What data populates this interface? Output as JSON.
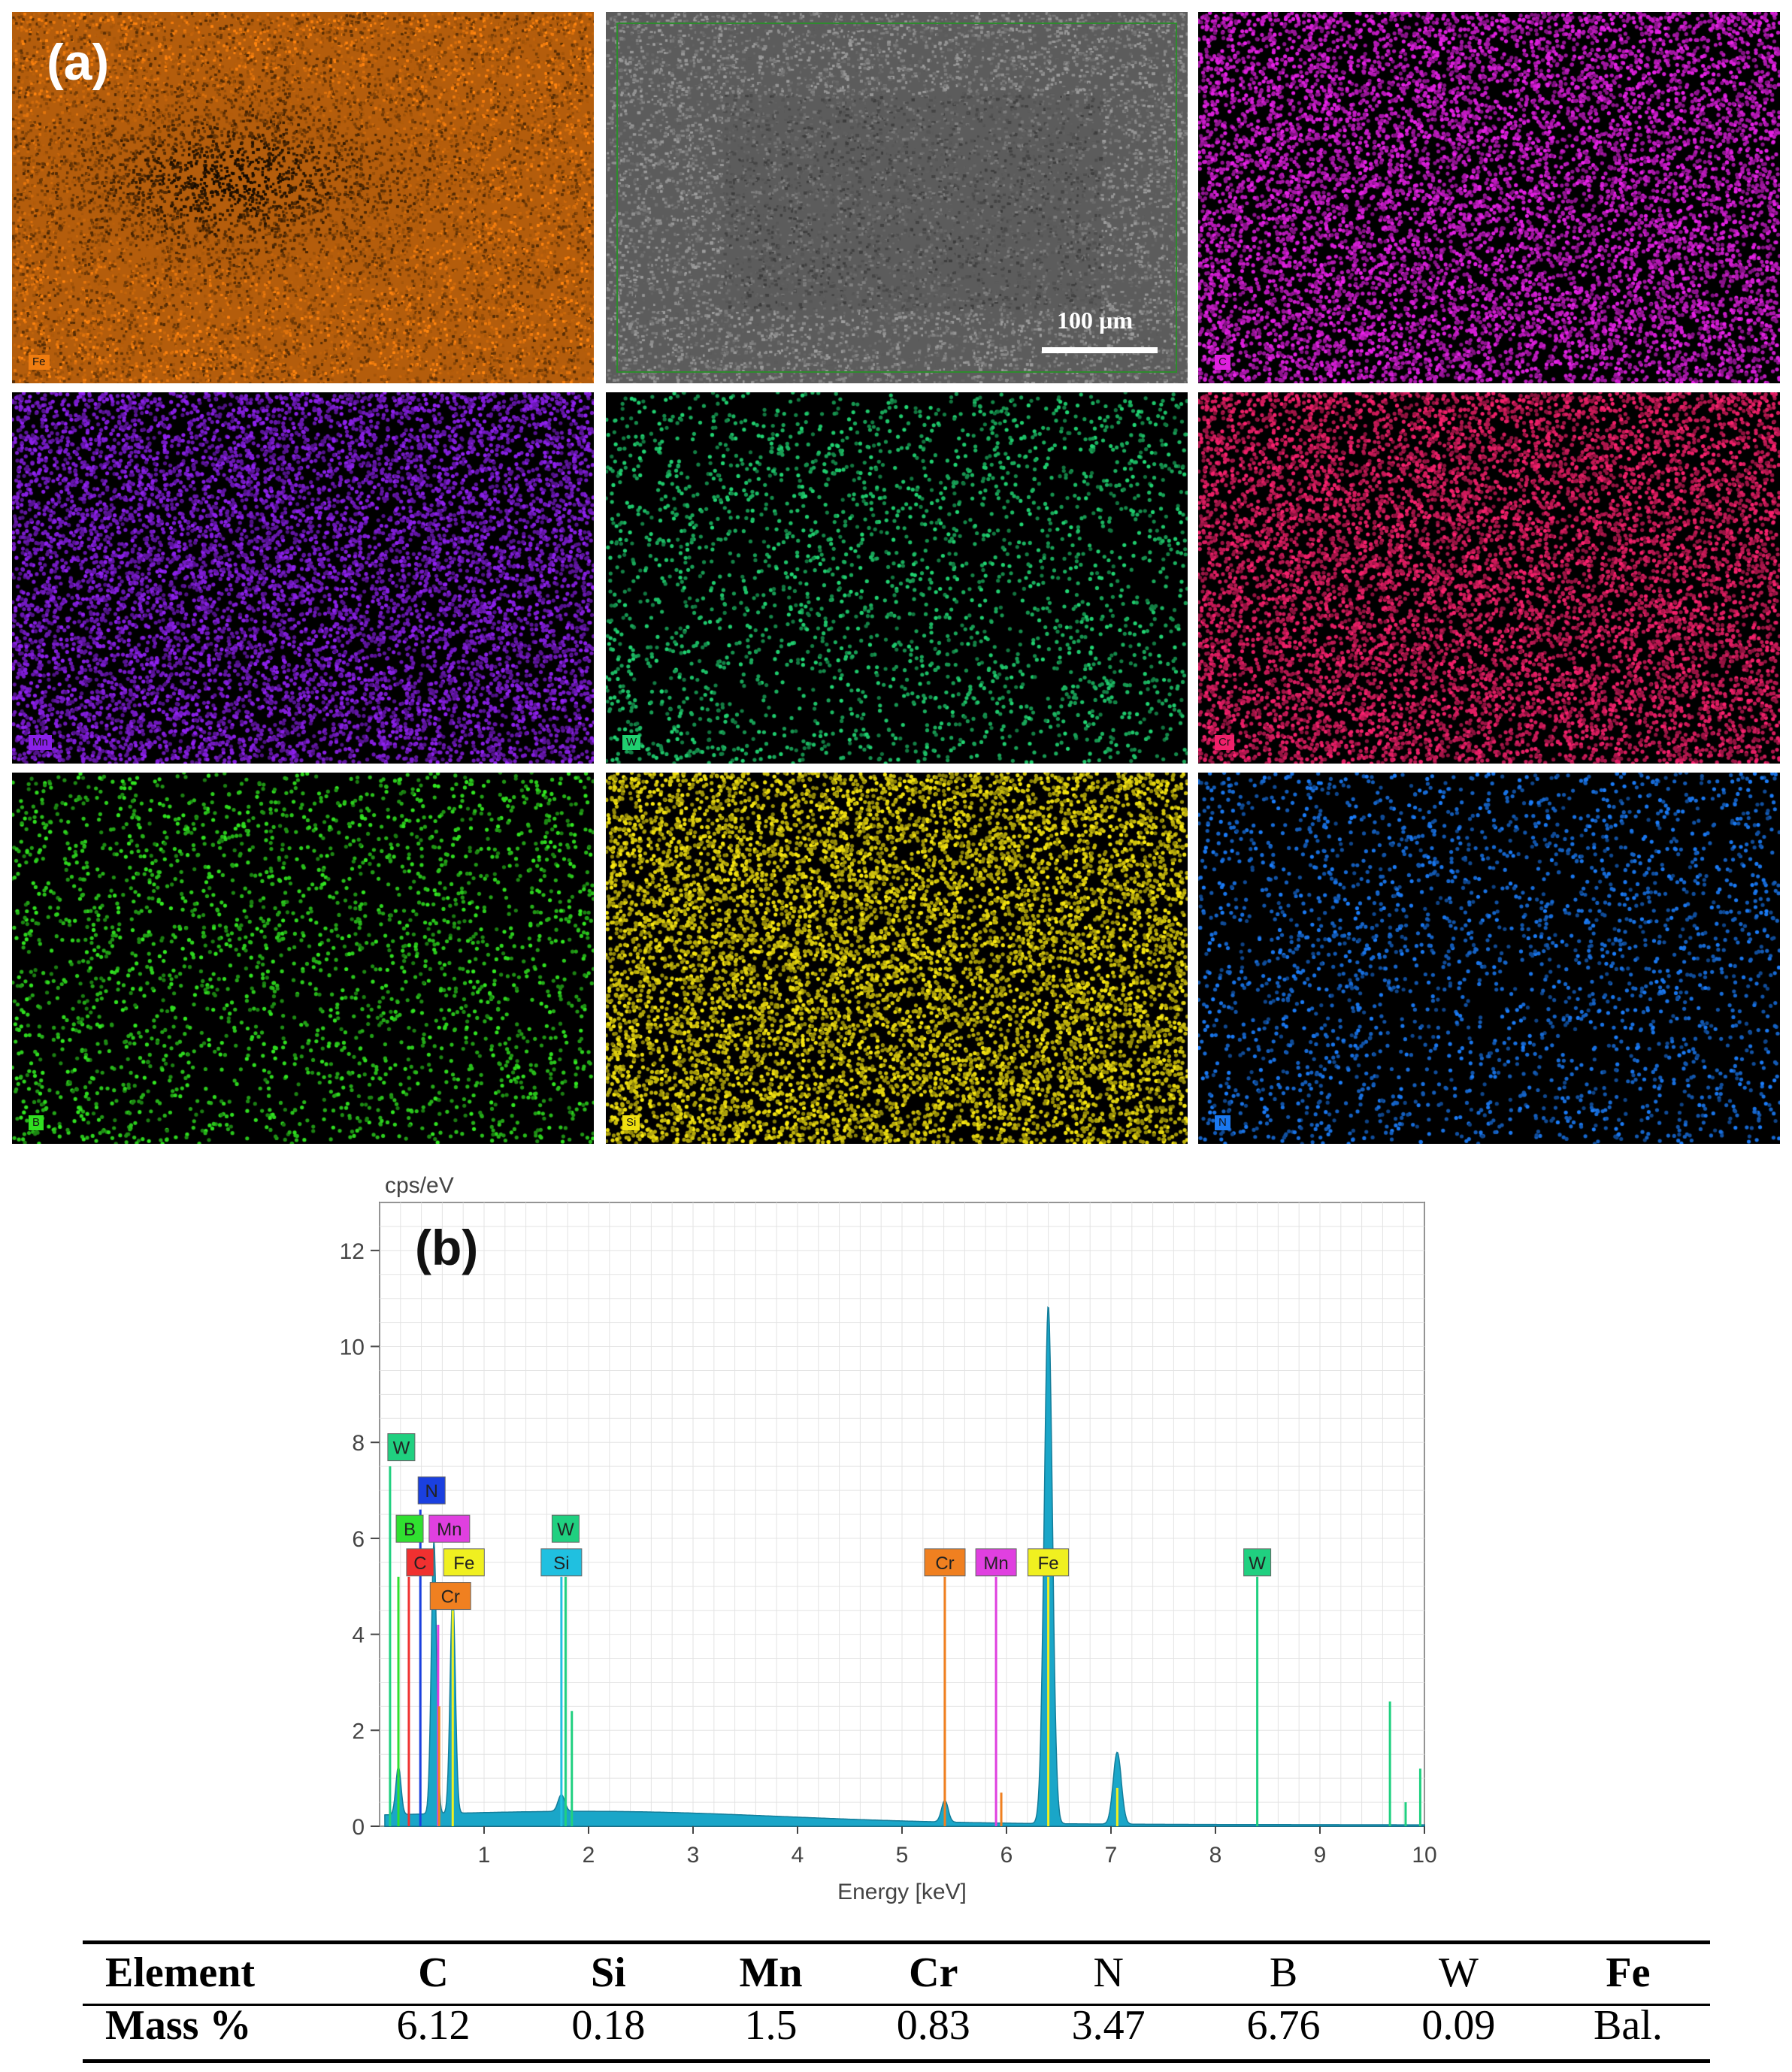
{
  "figure": {
    "panel_a_label": "(a)",
    "panel_b_label": "(b)",
    "sem_scale_label": "100 µm",
    "maps": [
      {
        "element": "Fe",
        "color": "#f07d10",
        "kind": "dense"
      },
      {
        "element": "",
        "color": "#808080",
        "kind": "sem"
      },
      {
        "element": "C",
        "color": "#e020e0",
        "kind": "dots"
      },
      {
        "element": "Mn",
        "color": "#8a20e8",
        "kind": "dots"
      },
      {
        "element": "W",
        "color": "#20d070",
        "kind": "sparse"
      },
      {
        "element": "Cr",
        "color": "#f0206a",
        "kind": "dots"
      },
      {
        "element": "B",
        "color": "#30e020",
        "kind": "sparse"
      },
      {
        "element": "Si",
        "color": "#f0e010",
        "kind": "dots"
      },
      {
        "element": "N",
        "color": "#1a78f0",
        "kind": "sparse"
      }
    ]
  },
  "chart_data": {
    "type": "area",
    "ylabel": "cps/eV",
    "xlabel": "Energy [keV]",
    "xlim": [
      0,
      10
    ],
    "ylim": [
      0,
      13
    ],
    "x_ticks": [
      1,
      2,
      3,
      4,
      5,
      6,
      7,
      8,
      9,
      10
    ],
    "y_ticks": [
      0,
      2,
      4,
      6,
      8,
      10,
      12
    ],
    "grid": true,
    "series_color": "#1aa6c8",
    "peaks": [
      {
        "x": 0.18,
        "y": 1.0
      },
      {
        "x": 0.52,
        "y": 5.7
      },
      {
        "x": 0.7,
        "y": 4.6
      },
      {
        "x": 1.74,
        "y": 0.35
      },
      {
        "x": 5.41,
        "y": 0.45
      },
      {
        "x": 6.4,
        "y": 10.8
      },
      {
        "x": 7.06,
        "y": 1.5
      }
    ],
    "element_lines": [
      {
        "label": "W",
        "x": 0.1,
        "label_y": 7.9,
        "height": 7.5,
        "color": "#20d080"
      },
      {
        "label": "N",
        "x": 0.39,
        "label_y": 7.0,
        "height": 6.6,
        "color": "#1a40e0"
      },
      {
        "label": "B",
        "x": 0.18,
        "label_y": 6.2,
        "height": 5.2,
        "color": "#30e030"
      },
      {
        "label": "Mn",
        "x": 0.56,
        "label_y": 6.2,
        "height": 4.2,
        "color": "#e040e0"
      },
      {
        "label": "C",
        "x": 0.28,
        "label_y": 5.5,
        "height": 5.2,
        "color": "#f03030"
      },
      {
        "label": "Fe",
        "x": 0.7,
        "label_y": 5.5,
        "height": 4.5,
        "color": "#f0f020"
      },
      {
        "label": "Cr",
        "x": 0.57,
        "label_y": 4.8,
        "height": 2.5,
        "color": "#f08020"
      },
      {
        "label": "W",
        "x": 1.78,
        "label_y": 6.2,
        "height": 5.2,
        "color": "#20d080"
      },
      {
        "label": "Si",
        "x": 1.74,
        "label_y": 5.5,
        "height": 5.2,
        "color": "#20c0e0"
      },
      {
        "label": "Cr",
        "x": 5.41,
        "label_y": 5.5,
        "height": 5.2,
        "color": "#f08020"
      },
      {
        "label": "Mn",
        "x": 5.9,
        "label_y": 5.5,
        "height": 5.2,
        "color": "#e040e0"
      },
      {
        "label": "Fe",
        "x": 6.4,
        "label_y": 5.5,
        "height": 5.2,
        "color": "#f0f020"
      },
      {
        "label": "W",
        "x": 8.4,
        "label_y": 5.5,
        "height": 5.2,
        "color": "#20d080"
      }
    ],
    "minor_lines": [
      {
        "x": 1.84,
        "height": 2.4,
        "color": "#20d080"
      },
      {
        "x": 5.41,
        "height": 2.6,
        "color": "#f08020"
      },
      {
        "x": 5.95,
        "height": 0.7,
        "color": "#f08020"
      },
      {
        "x": 7.06,
        "height": 0.8,
        "color": "#f0f020"
      },
      {
        "x": 9.67,
        "height": 2.6,
        "color": "#20d080"
      },
      {
        "x": 9.96,
        "height": 1.2,
        "color": "#20d080"
      },
      {
        "x": 9.82,
        "height": 0.5,
        "color": "#20d080"
      }
    ]
  },
  "table": {
    "header": [
      "Element",
      "C",
      "Si",
      "Mn",
      "Cr",
      "N",
      "B",
      "W",
      "Fe"
    ],
    "row": [
      "Mass %",
      "6.12",
      "0.18",
      "1.5",
      "0.83",
      "3.47",
      "6.76",
      "0.09",
      "Bal."
    ]
  }
}
